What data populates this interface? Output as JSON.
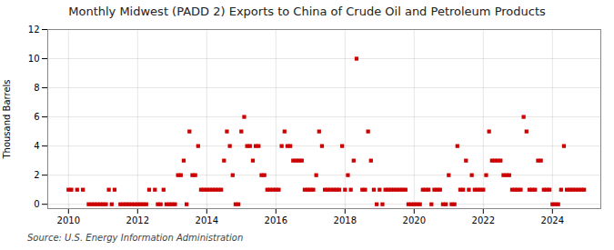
{
  "chart_data": {
    "type": "scatter",
    "title": "Monthly Midwest (PADD 2) Exports to China of Crude Oil and Petroleum Products",
    "ylabel": "Thousand Barrels",
    "caption": "Source: U.S. Energy Information Administration",
    "color": "#CC0000",
    "marker": "square",
    "grid": true,
    "xlim": [
      2009.4,
      2025.4
    ],
    "xticks": [
      2010,
      2012,
      2014,
      2016,
      2018,
      2020,
      2022,
      2024
    ],
    "ylim": [
      -0.3,
      12
    ],
    "yticks": [
      0,
      2,
      4,
      6,
      8,
      10,
      12
    ],
    "x": [
      2010.0,
      2010.083,
      2010.25,
      2010.417,
      2010.583,
      2010.667,
      2010.75,
      2010.833,
      2010.917,
      2011.0,
      2011.083,
      2011.167,
      2011.25,
      2011.333,
      2011.5,
      2011.583,
      2011.667,
      2011.75,
      2011.833,
      2011.917,
      2012.0,
      2012.083,
      2012.167,
      2012.25,
      2012.333,
      2012.5,
      2012.583,
      2012.667,
      2012.75,
      2012.833,
      2012.917,
      2013.0,
      2013.083,
      2013.167,
      2013.25,
      2013.333,
      2013.417,
      2013.5,
      2013.583,
      2013.667,
      2013.75,
      2013.833,
      2013.917,
      2014.0,
      2014.083,
      2014.167,
      2014.25,
      2014.333,
      2014.417,
      2014.5,
      2014.583,
      2014.667,
      2014.75,
      2014.833,
      2014.917,
      2015.0,
      2015.083,
      2015.167,
      2015.25,
      2015.333,
      2015.417,
      2015.5,
      2015.583,
      2015.667,
      2015.75,
      2015.833,
      2015.917,
      2016.0,
      2016.083,
      2016.167,
      2016.25,
      2016.333,
      2016.417,
      2016.5,
      2016.583,
      2016.667,
      2016.75,
      2016.833,
      2016.917,
      2017.0,
      2017.083,
      2017.167,
      2017.25,
      2017.333,
      2017.417,
      2017.5,
      2017.583,
      2017.667,
      2017.75,
      2017.833,
      2017.917,
      2018.0,
      2018.083,
      2018.167,
      2018.25,
      2018.333,
      2018.5,
      2018.583,
      2018.667,
      2018.75,
      2018.833,
      2018.917,
      2019.0,
      2019.083,
      2019.167,
      2019.25,
      2019.333,
      2019.417,
      2019.5,
      2019.583,
      2019.667,
      2019.75,
      2019.833,
      2019.917,
      2020.0,
      2020.083,
      2020.167,
      2020.25,
      2020.333,
      2020.417,
      2020.5,
      2020.583,
      2020.667,
      2020.75,
      2020.833,
      2020.917,
      2021.0,
      2021.083,
      2021.167,
      2021.25,
      2021.333,
      2021.417,
      2021.5,
      2021.583,
      2021.667,
      2021.75,
      2021.833,
      2021.917,
      2022.0,
      2022.083,
      2022.167,
      2022.25,
      2022.333,
      2022.417,
      2022.5,
      2022.583,
      2022.667,
      2022.75,
      2022.833,
      2022.917,
      2023.0,
      2023.083,
      2023.167,
      2023.25,
      2023.333,
      2023.417,
      2023.5,
      2023.583,
      2023.667,
      2023.75,
      2023.833,
      2023.917,
      2024.0,
      2024.083,
      2024.167,
      2024.25,
      2024.333,
      2024.417,
      2024.5,
      2024.583,
      2024.667,
      2024.75,
      2024.833,
      2024.917
    ],
    "values": [
      1,
      1,
      1,
      1,
      0,
      0,
      0,
      0,
      0,
      0,
      0,
      1,
      0,
      1,
      0,
      0,
      0,
      0,
      0,
      0,
      0,
      0,
      0,
      0,
      1,
      1,
      0,
      0,
      1,
      0,
      0,
      0,
      0,
      2,
      2,
      3,
      0,
      5,
      2,
      2,
      4,
      1,
      1,
      1,
      1,
      1,
      1,
      1,
      1,
      3,
      5,
      4,
      2,
      0,
      0,
      5,
      6,
      4,
      4,
      3,
      4,
      4,
      2,
      2,
      1,
      1,
      1,
      1,
      1,
      4,
      5,
      4,
      4,
      3,
      3,
      3,
      3,
      1,
      1,
      1,
      1,
      2,
      5,
      4,
      1,
      1,
      1,
      1,
      1,
      1,
      4,
      1,
      2,
      1,
      3,
      10,
      1,
      1,
      5,
      3,
      1,
      0,
      1,
      0,
      1,
      1,
      1,
      1,
      1,
      1,
      1,
      1,
      0,
      0,
      0,
      0,
      0,
      1,
      1,
      1,
      0,
      1,
      1,
      1,
      0,
      0,
      2,
      0,
      0,
      4,
      1,
      1,
      3,
      1,
      2,
      1,
      1,
      1,
      1,
      2,
      5,
      3,
      3,
      3,
      3,
      2,
      2,
      2,
      1,
      1,
      1,
      1,
      6,
      5,
      1,
      1,
      1,
      3,
      3,
      1,
      1,
      1,
      0,
      0,
      0,
      1,
      4,
      1,
      1,
      1,
      1,
      1,
      1,
      1
    ]
  }
}
